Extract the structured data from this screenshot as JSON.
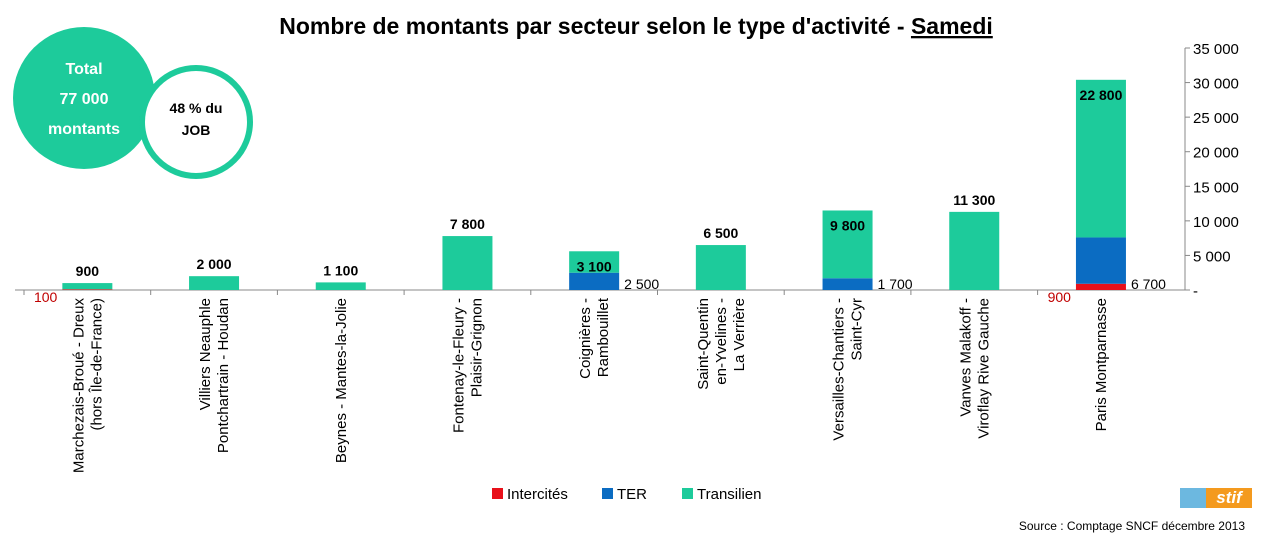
{
  "chart_data": {
    "type": "stacked_bar",
    "title": "Nombre de montants par secteur selon le type d'activité -",
    "title_underlined": "Samedi",
    "categories": [
      [
        "Marchezais-Broué - Dreux",
        "(hors Île-de-France)"
      ],
      [
        "Villiers Neauphle",
        "Pontchartrain - Houdan"
      ],
      [
        "Beynes - Mantes-la-Jolie"
      ],
      [
        "Fontenay-le-Fleury -",
        "Plaisir-Grignon"
      ],
      [
        "Coignières -",
        "Rambouillet"
      ],
      [
        "Saint-Quentin",
        "en-Yvelines -",
        "La Verrière"
      ],
      [
        "Versailles-Chantiers -",
        "Saint-Cyr"
      ],
      [
        "Vanves Malakoff -",
        "Viroflay Rive Gauche"
      ],
      [
        "Paris Montparnasse"
      ]
    ],
    "series": [
      {
        "name": "Intercités",
        "color": "#e8101a",
        "values": [
          100,
          null,
          null,
          null,
          null,
          null,
          null,
          null,
          900
        ]
      },
      {
        "name": "TER",
        "color": "#0b6cc2",
        "values": [
          null,
          null,
          null,
          null,
          2500,
          null,
          1700,
          null,
          6700
        ],
        "value_labels": [
          null,
          null,
          null,
          null,
          "2 500",
          null,
          "1 700",
          null,
          "6 700"
        ]
      },
      {
        "name": "Transilien",
        "color": "#1dcb9b",
        "values": [
          900,
          2000,
          1100,
          7800,
          3100,
          6500,
          9800,
          11300,
          22800
        ],
        "value_labels": [
          "900",
          "2 000",
          "1 100",
          "7 800",
          "3 100",
          "6 500",
          "9 800",
          "11 300",
          "22 800"
        ]
      }
    ],
    "ylim": [
      0,
      35000
    ],
    "yticks": [
      {
        "value": 0,
        "label": "-"
      },
      {
        "value": 5000,
        "label": "5 000"
      },
      {
        "value": 10000,
        "label": "10 000"
      },
      {
        "value": 15000,
        "label": "15 000"
      },
      {
        "value": 20000,
        "label": "20 000"
      },
      {
        "value": 25000,
        "label": "25 000"
      },
      {
        "value": 30000,
        "label": "30 000"
      },
      {
        "value": 35000,
        "label": "35 000"
      }
    ],
    "annotations": {
      "total": [
        "Total",
        "77 000",
        "montants"
      ],
      "share": [
        "48 % du",
        "JOB"
      ]
    },
    "source": "Source : Comptage SNCF décembre 2013",
    "logo": "stif"
  }
}
